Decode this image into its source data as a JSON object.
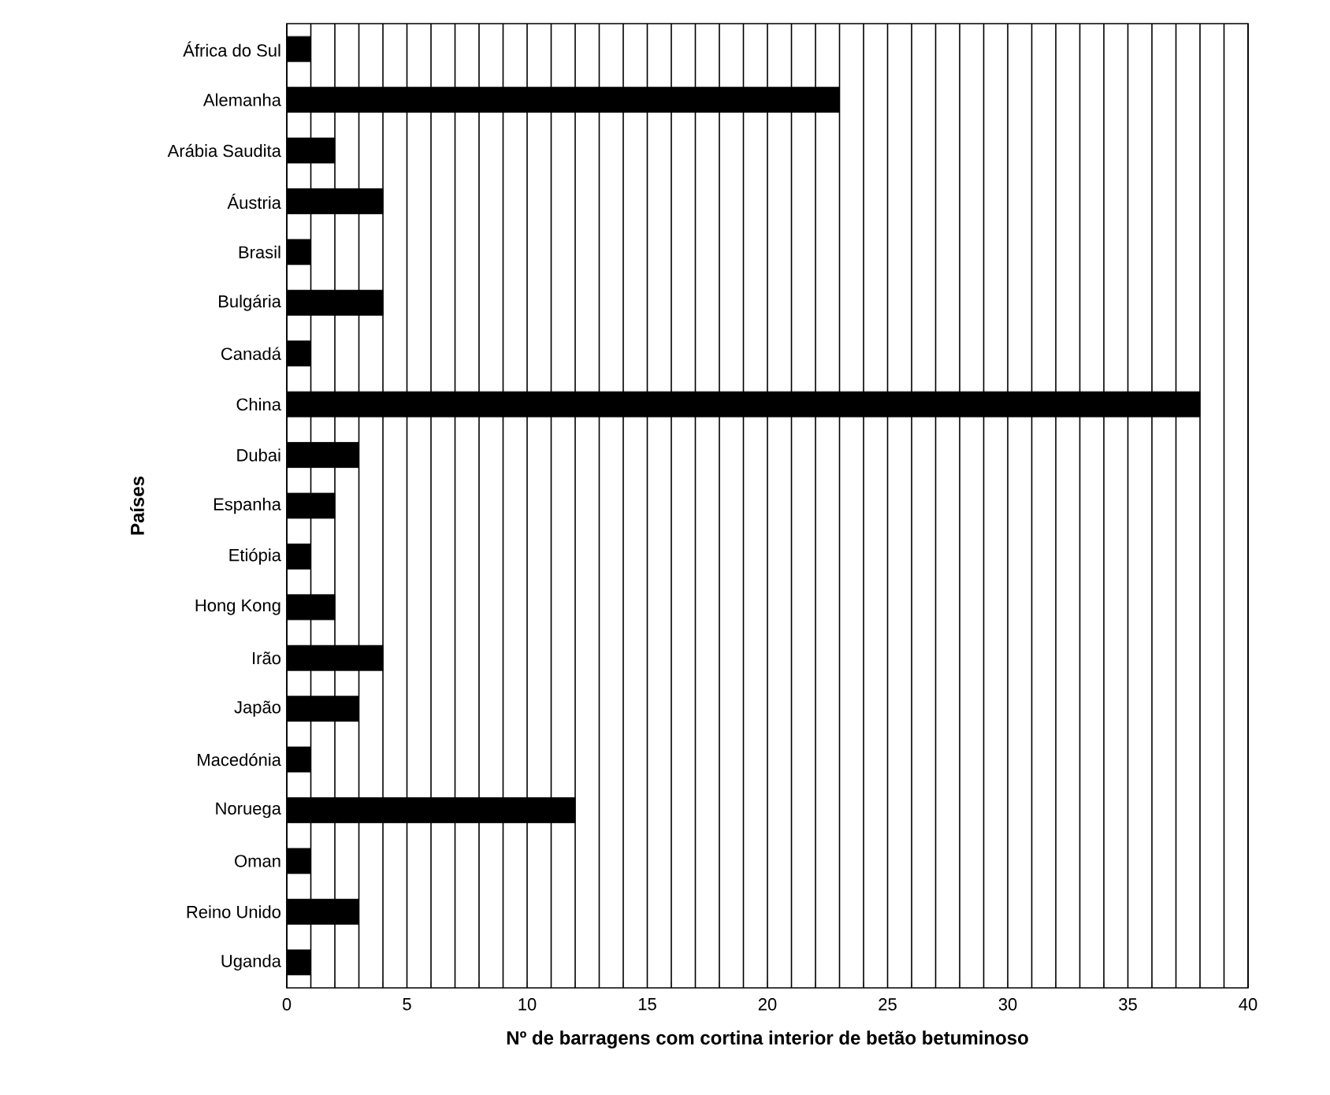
{
  "chart_data": {
    "type": "bar",
    "orientation": "horizontal",
    "xlabel": "Nº de barragens com cortina interior de betão betuminoso",
    "ylabel": "Países",
    "categories": [
      "África do Sul",
      "Alemanha",
      "Arábia Saudita",
      "Áustria",
      "Brasil",
      "Bulgária",
      "Canadá",
      "China",
      "Dubai",
      "Espanha",
      "Etiópia",
      "Hong Kong",
      "Irão",
      "Japão",
      "Macedónia",
      "Noruega",
      "Oman",
      "Reino Unido",
      "Uganda"
    ],
    "values": [
      1,
      23,
      2,
      4,
      1,
      4,
      1,
      38,
      3,
      2,
      1,
      2,
      4,
      3,
      1,
      12,
      1,
      3,
      1
    ],
    "color": "#000000",
    "xlim": [
      0,
      40
    ],
    "xticks": [
      0,
      {
        "value": 1,
        "label": null
      },
      {
        "value": 2,
        "label": null
      },
      {
        "value": 3,
        "label": null
      },
      {
        "value": 4,
        "label": null
      },
      5,
      {
        "value": 6,
        "label": null
      },
      {
        "value": 7,
        "label": null
      },
      {
        "value": 8,
        "label": null
      },
      {
        "value": 9,
        "label": null
      },
      10,
      {
        "value": 11,
        "label": null
      },
      {
        "value": 12,
        "label": null
      },
      {
        "value": 13,
        "label": null
      },
      {
        "value": 14,
        "label": null
      },
      15,
      {
        "value": 16,
        "label": null
      },
      {
        "value": 17,
        "label": null
      },
      {
        "value": 18,
        "label": null
      },
      {
        "value": 19,
        "label": null
      },
      20,
      {
        "value": 21,
        "label": null
      },
      {
        "value": 22,
        "label": null
      },
      {
        "value": 23,
        "label": null
      },
      {
        "value": 24,
        "label": null
      },
      25,
      {
        "value": 26,
        "label": null
      },
      {
        "value": 27,
        "label": null
      },
      {
        "value": 28,
        "label": null
      },
      {
        "value": 29,
        "label": null
      },
      30,
      {
        "value": 31,
        "label": null
      },
      {
        "value": 32,
        "label": null
      },
      {
        "value": 33,
        "label": null
      },
      {
        "value": 34,
        "label": null
      },
      35,
      {
        "value": 36,
        "label": null
      },
      {
        "value": 37,
        "label": null
      },
      {
        "value": 38,
        "label": null
      },
      {
        "value": 39,
        "label": null
      },
      40
    ],
    "grid": "x"
  }
}
